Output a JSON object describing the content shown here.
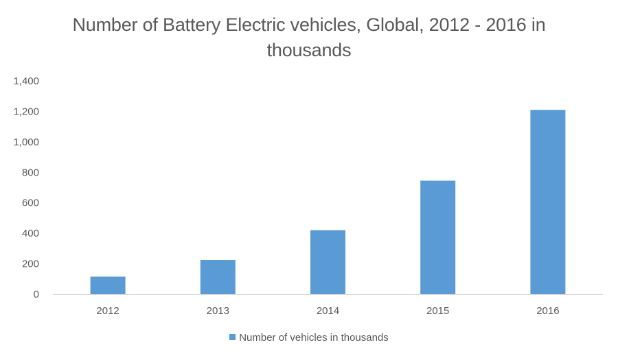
{
  "chart_data": {
    "type": "bar",
    "title": "Number of Battery Electric vehicles, Global, 2012 - 2016 in thousands",
    "categories": [
      "2012",
      "2013",
      "2014",
      "2015",
      "2016"
    ],
    "series": [
      {
        "name": "Number of vehicles in thousands",
        "values": [
          115,
          225,
          420,
          745,
          1210
        ],
        "color": "#5B9BD5"
      }
    ],
    "xlabel": "",
    "ylabel": "",
    "ylim": [
      0,
      1400
    ],
    "yticks": [
      0,
      200,
      400,
      600,
      800,
      1000,
      1200,
      1400
    ],
    "ytick_labels": [
      "0",
      "200",
      "400",
      "600",
      "800",
      "1,000",
      "1,200",
      "1,400"
    ],
    "grid": false,
    "legend_position": "bottom"
  }
}
